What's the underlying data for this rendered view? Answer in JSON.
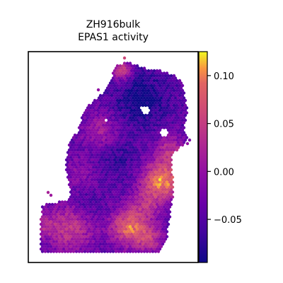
{
  "chart_data": {
    "type": "spatial-scatter",
    "title_line1": "ZH916bulk",
    "title_line2": "EPAS1 activity",
    "colormap": "plasma",
    "colorbar": {
      "vmin": -0.095,
      "vmax": 0.125,
      "ticks": [
        0.1,
        0.05,
        0.0,
        -0.05
      ],
      "tick_labels": [
        "0.10",
        "0.05",
        "0.00",
        "−0.05"
      ]
    },
    "axes": {
      "xticks": false,
      "yticks": false
    },
    "hotspots": [
      {
        "label": "right-center",
        "value": 0.12
      },
      {
        "label": "lower-center",
        "value": 0.09
      },
      {
        "label": "lower-left",
        "value": 0.06
      },
      {
        "label": "top-left",
        "value": 0.05
      },
      {
        "label": "right-upper",
        "value": 0.04
      }
    ]
  }
}
